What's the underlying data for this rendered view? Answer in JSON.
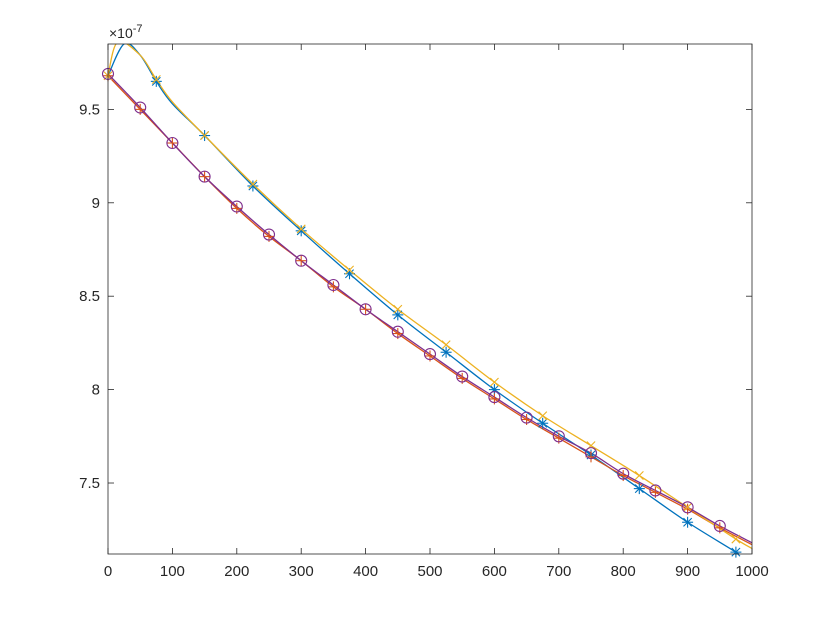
{
  "chart_data": {
    "type": "line",
    "title": "",
    "xlabel": "",
    "ylabel": "",
    "y_exponent_label": "×10",
    "y_exponent_power": "-7",
    "xlim": [
      0,
      1000
    ],
    "ylim": [
      7.12,
      9.85
    ],
    "x_ticks": [
      0,
      100,
      200,
      300,
      400,
      500,
      600,
      700,
      800,
      900,
      1000
    ],
    "x_tick_labels": [
      "0",
      "100",
      "200",
      "300",
      "400",
      "500",
      "600",
      "700",
      "800",
      "900",
      "1000"
    ],
    "y_ticks": [
      7.5,
      8,
      8.5,
      9,
      9.5
    ],
    "y_tick_labels": [
      "7.5",
      "8",
      "8.5",
      "9",
      "9.5"
    ],
    "grid": false,
    "legend": "none",
    "series": [
      {
        "color": "#0072BD",
        "marker": "asterisk",
        "x": [
          0,
          25,
          50,
          75,
          100,
          150,
          225,
          300,
          375,
          450,
          525,
          600,
          675,
          750,
          825,
          900,
          975,
          1000
        ],
        "y": [
          9.68,
          9.85,
          9.79,
          9.65,
          9.53,
          9.36,
          9.09,
          8.85,
          8.62,
          8.4,
          8.2,
          8.0,
          7.82,
          7.65,
          7.47,
          7.29,
          7.13,
          7.07
        ],
        "marker_x": [
          75,
          150,
          225,
          300,
          375,
          450,
          525,
          600,
          675,
          750,
          825,
          900,
          975
        ]
      },
      {
        "color": "#D95319",
        "marker": "plus",
        "x": [
          0,
          50,
          100,
          150,
          200,
          250,
          300,
          350,
          400,
          450,
          500,
          550,
          600,
          650,
          700,
          750,
          800,
          850,
          900,
          950,
          1000
        ],
        "y": [
          9.68,
          9.5,
          9.32,
          9.14,
          8.97,
          8.82,
          8.69,
          8.55,
          8.43,
          8.3,
          8.18,
          8.06,
          7.95,
          7.84,
          7.74,
          7.64,
          7.54,
          7.45,
          7.36,
          7.26,
          7.17
        ],
        "marker_x": [
          0,
          50,
          100,
          150,
          200,
          250,
          300,
          350,
          400,
          450,
          500,
          550,
          600,
          650,
          700,
          750,
          800,
          850,
          900,
          950
        ]
      },
      {
        "color": "#EDB120",
        "marker": "x",
        "x": [
          0,
          15,
          50,
          75,
          100,
          150,
          225,
          300,
          375,
          450,
          525,
          600,
          675,
          750,
          825,
          900,
          975,
          1000
        ],
        "y": [
          9.68,
          9.86,
          9.79,
          9.66,
          9.54,
          9.36,
          9.1,
          8.86,
          8.64,
          8.43,
          8.24,
          8.04,
          7.86,
          7.7,
          7.54,
          7.37,
          7.2,
          7.15
        ],
        "marker_x": [
          0,
          75,
          150,
          225,
          300,
          375,
          450,
          525,
          600,
          675,
          750,
          825,
          900,
          975
        ]
      },
      {
        "color": "#7E2F8E",
        "marker": "circle",
        "x": [
          0,
          50,
          100,
          150,
          200,
          250,
          300,
          350,
          400,
          450,
          500,
          550,
          600,
          650,
          700,
          750,
          800,
          850,
          900,
          950,
          1000
        ],
        "y": [
          9.69,
          9.51,
          9.32,
          9.14,
          8.98,
          8.83,
          8.69,
          8.56,
          8.43,
          8.31,
          8.19,
          8.07,
          7.96,
          7.85,
          7.75,
          7.66,
          7.55,
          7.46,
          7.37,
          7.27,
          7.18
        ],
        "marker_x": [
          0,
          50,
          100,
          150,
          200,
          250,
          300,
          350,
          400,
          450,
          500,
          550,
          600,
          650,
          700,
          750,
          800,
          850,
          900,
          950
        ]
      }
    ]
  }
}
